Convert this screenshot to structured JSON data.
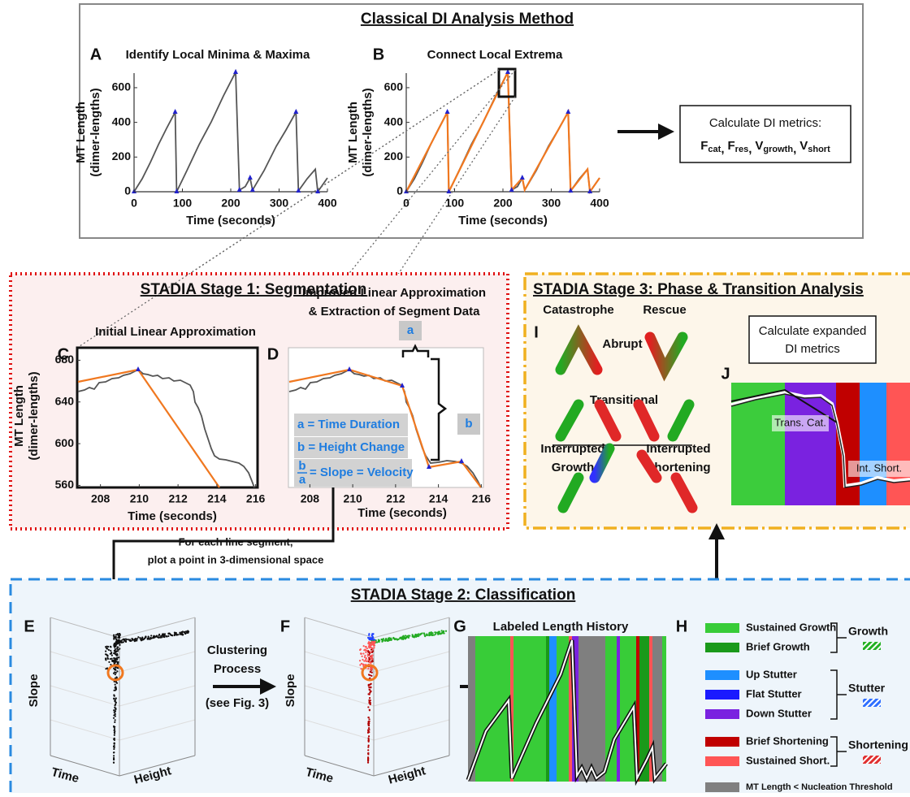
{
  "classical": {
    "title": "Classical DI Analysis Method",
    "panel_a": {
      "letter": "A",
      "title": "Identify Local Minima & Maxima",
      "y_label": [
        "MT Length",
        "(dimer-lengths)"
      ],
      "x_label": "Time (seconds)",
      "xlim": [
        0,
        400
      ],
      "ylim": [
        0,
        684
      ],
      "xticks": [
        0,
        100,
        200,
        300,
        400
      ],
      "yticks": [
        0,
        200,
        400,
        600
      ]
    },
    "panel_b": {
      "letter": "B",
      "title": "Connect Local Extrema",
      "y_label": [
        "MT Length",
        "(dimer-lengths)"
      ],
      "x_label": "Time (seconds)",
      "xlim": [
        0,
        400
      ],
      "ylim": [
        0,
        684
      ],
      "xticks": [
        0,
        100,
        200,
        300,
        400
      ],
      "yticks": [
        0,
        200,
        400,
        600
      ]
    },
    "metrics_box": {
      "heading": "Calculate DI metrics:",
      "separator": ",",
      "metrics": [
        {
          "symbol": "F",
          "sub": "cat"
        },
        {
          "symbol": "F",
          "sub": "res"
        },
        {
          "symbol": "V",
          "sub": "growth"
        },
        {
          "symbol": "V",
          "sub": "short"
        }
      ]
    }
  },
  "stage1": {
    "title": "STADIA Stage 1: Segmentation",
    "panel_c": {
      "letter": "C",
      "title": "Initial Linear Approximation",
      "y_label": [
        "MT Length",
        "(dimer-lengths)"
      ],
      "x_label": "Time (seconds)",
      "xlim": [
        206.8,
        216.1
      ],
      "ylim": [
        558,
        692
      ],
      "xticks": [
        208,
        210,
        212,
        214,
        216
      ],
      "yticks": [
        560,
        600,
        640,
        680
      ]
    },
    "panel_d": {
      "letter": "D",
      "title": [
        "Improved Linear Approximation",
        "& Extraction of Segment Data"
      ],
      "x_label": "Time (seconds)",
      "xlim": [
        207,
        216.1
      ],
      "xticks": [
        208,
        210,
        212,
        214,
        216
      ],
      "a_tag": "a",
      "b_tag": "b",
      "definitions": [
        "a = Time Duration",
        "b = Height Change"
      ],
      "slope": {
        "num": "b",
        "den": "a",
        "text": "= Slope = Velocity"
      }
    },
    "connector": [
      "For each line segment,",
      "plot a point in 3-dimensional space"
    ]
  },
  "stage2": {
    "title": "STADIA Stage 2: Classification",
    "panel_e": {
      "letter": "E",
      "axes": {
        "slope": "Slope",
        "time": "Time",
        "height": "Height"
      }
    },
    "clustering": [
      "Clustering",
      "Process",
      "(see Fig. 3)"
    ],
    "panel_f": {
      "letter": "F",
      "axes": {
        "slope": "Slope",
        "time": "Time",
        "height": "Height"
      }
    },
    "panel_g": {
      "letter": "G",
      "title": "Labeled Length History"
    },
    "panel_h": {
      "letter": "H",
      "groups": [
        {
          "name": "Growth",
          "color": "#22b022",
          "items": [
            {
              "label": "Sustained  Growth",
              "color": "#38cc38"
            },
            {
              "label": "Brief Growth",
              "color": "#1a991a"
            }
          ]
        },
        {
          "name": "Stutter",
          "color": "#2f6fff",
          "items": [
            {
              "label": "Up Stutter",
              "color": "#1e8fff"
            },
            {
              "label": "Flat Stutter",
              "color": "#1a1aff"
            },
            {
              "label": "Down Stutter",
              "color": "#7a22e0"
            }
          ]
        },
        {
          "name": "Shortening",
          "color": "#e03030",
          "items": [
            {
              "label": "Brief Shortening",
              "color": "#c00000"
            },
            {
              "label": "Sustained Short.",
              "color": "#ff5555"
            }
          ]
        }
      ],
      "threshold": {
        "label": "MT Length < Nucleation Threshold",
        "color": "#808080"
      }
    }
  },
  "stage3": {
    "title": "STADIA Stage 3: Phase & Transition Analysis",
    "panel_i": {
      "letter": "I",
      "catastrophe": "Catastrophe",
      "rescue": "Rescue",
      "abrupt": "Abrupt",
      "transitional": "Transitional",
      "interrupted_growth": [
        "Interrupted",
        "Growth"
      ],
      "interrupted_shortening": [
        "Interrupted",
        "Shortening"
      ]
    },
    "metrics_box": [
      "Calculate expanded",
      "DI metrics"
    ],
    "panel_j": {
      "letter": "J",
      "labels": [
        "Trans. Cat.",
        "Int. Short."
      ]
    }
  }
}
